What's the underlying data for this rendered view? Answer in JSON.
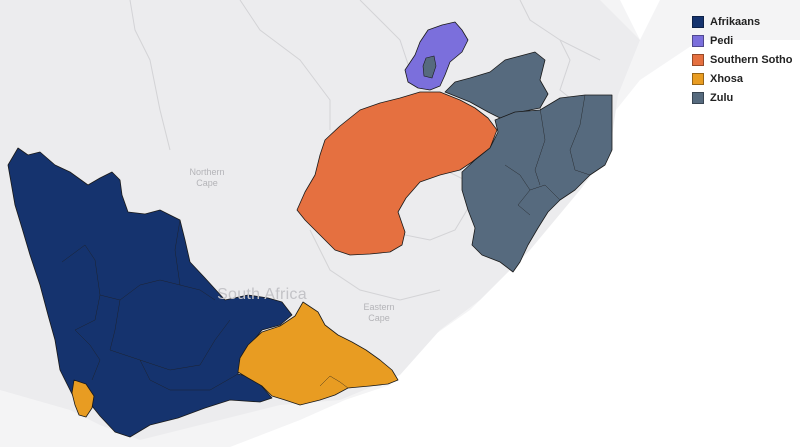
{
  "map": {
    "country_label": "South Africa",
    "place_labels": [
      {
        "id": "northern-cape",
        "lines": [
          "Northern",
          "Cape"
        ]
      },
      {
        "id": "eastern-cape",
        "lines": [
          "Eastern",
          "Cape"
        ]
      }
    ]
  },
  "legend": {
    "items": [
      {
        "label": "Afrikaans",
        "color": "#15336e"
      },
      {
        "label": "Pedi",
        "color": "#7b6fdc"
      },
      {
        "label": "Southern Sotho",
        "color": "#e57040"
      },
      {
        "label": "Xhosa",
        "color": "#e89c22"
      },
      {
        "label": "Zulu",
        "color": "#566a7e"
      }
    ]
  },
  "colors": {
    "land": "#ececee",
    "neighbors": "#f4f4f5",
    "water": "#ffffff"
  },
  "regions": [
    {
      "name": "western-afrikaans-region",
      "language": "Afrikaans"
    },
    {
      "name": "pedi-region",
      "language": "Pedi"
    },
    {
      "name": "southern-sotho-region",
      "language": "Southern Sotho"
    },
    {
      "name": "xhosa-eastern-region",
      "language": "Xhosa"
    },
    {
      "name": "xhosa-cape-town-region",
      "language": "Xhosa"
    },
    {
      "name": "zulu-north-region",
      "language": "Zulu"
    },
    {
      "name": "zulu-east-region",
      "language": "Zulu"
    }
  ]
}
